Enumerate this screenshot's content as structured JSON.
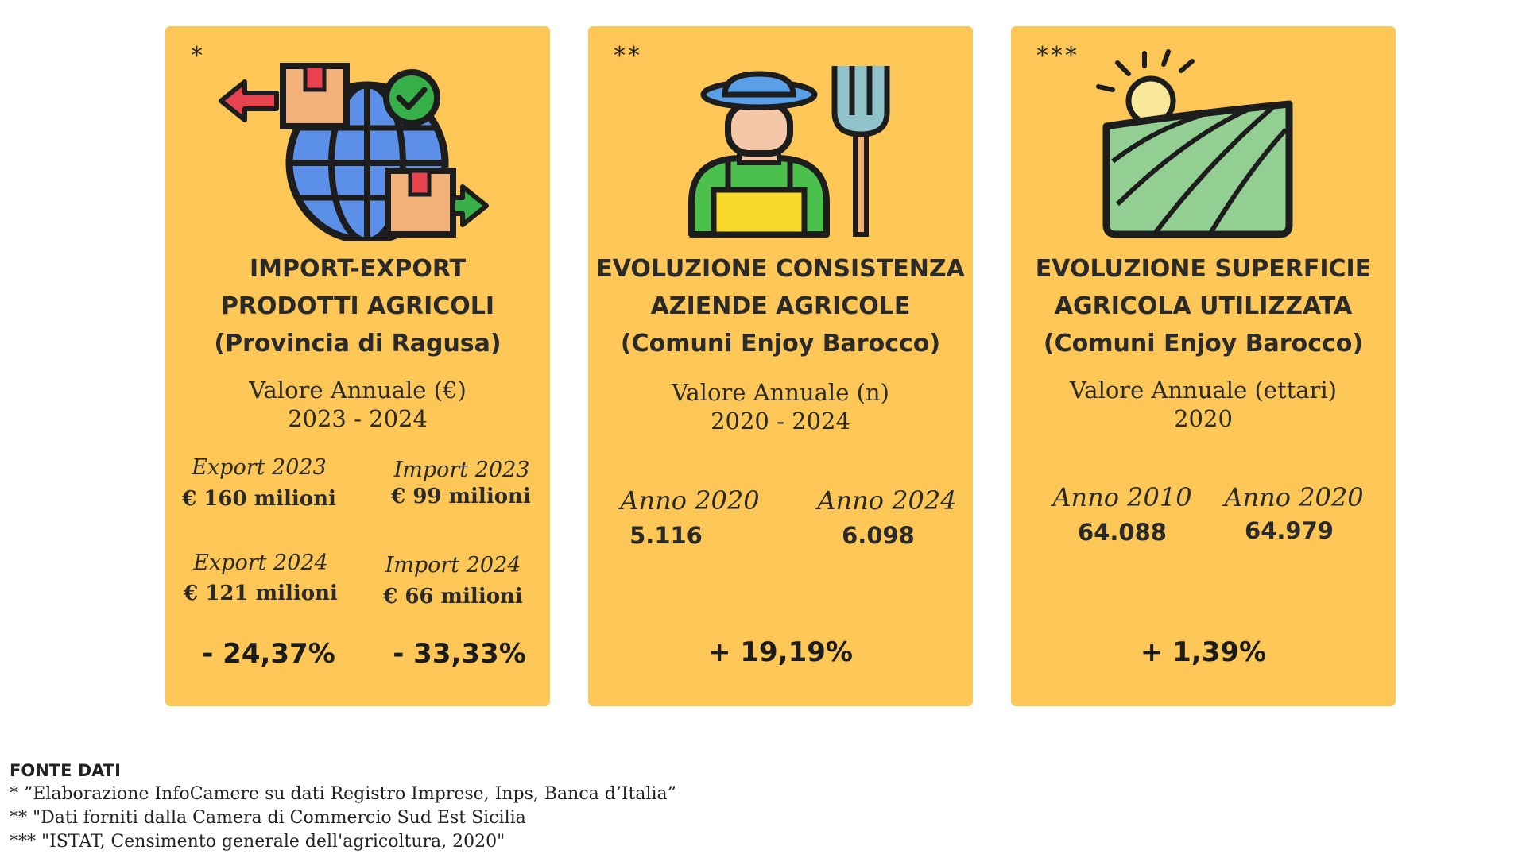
{
  "cards": [
    {
      "stars": "*",
      "icon": "globe-import-export-icon",
      "title_lines": [
        "IMPORT-EXPORT",
        "PRODOTTI AGRICOLI",
        "(Provincia di Ragusa)"
      ],
      "value_label": "Valore Annuale (€)",
      "period": "2023 - 2024",
      "stats": [
        {
          "label": "Export 2023",
          "value": "€ 160 milioni"
        },
        {
          "label": "Import 2023",
          "value": "€ 99 milioni"
        },
        {
          "label": "Export 2024",
          "value": "€ 121 milioni"
        },
        {
          "label": "Import 2024",
          "value": "€ 66 milioni"
        }
      ],
      "changes": [
        "- 24,37%",
        "- 33,33%"
      ]
    },
    {
      "stars": "**",
      "icon": "farmer-pitchfork-icon",
      "title_lines": [
        "EVOLUZIONE CONSISTENZA",
        "AZIENDE AGRICOLE",
        "(Comuni Enjoy Barocco)"
      ],
      "value_label": "Valore  Annuale (n)",
      "period": "2020 - 2024",
      "stats": [
        {
          "label": "Anno 2020",
          "value": "5.116"
        },
        {
          "label": "Anno 2024",
          "value": "6.098"
        }
      ],
      "changes": [
        "+ 19,19%"
      ]
    },
    {
      "stars": "***",
      "icon": "field-sun-icon",
      "title_lines": [
        "EVOLUZIONE SUPERFICIE",
        "AGRICOLA UTILIZZATA",
        "(Comuni Enjoy Barocco)"
      ],
      "value_label": "Valore  Annuale (ettari)",
      "period": "2020",
      "stats": [
        {
          "label": "Anno 2010",
          "value": "64.088"
        },
        {
          "label": "Anno 2020",
          "value": "64.979"
        }
      ],
      "changes": [
        "+ 1,39%"
      ]
    }
  ],
  "source": {
    "heading": "FONTE DATI",
    "lines": [
      "* ”Elaborazione InfoCamere su dati Registro Imprese, Inps, Banca d’Italia”",
      "** \"Dati forniti dalla Camera di Commercio Sud Est Sicilia",
      "*** \"ISTAT, Censimento generale dell'agricoltura, 2020\""
    ]
  },
  "colors": {
    "card": "#fdc757",
    "text": "#2a2a2a"
  }
}
